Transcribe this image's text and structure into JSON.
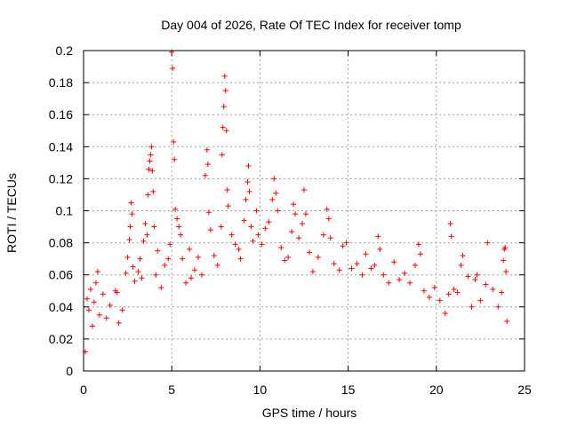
{
  "chart_data": {
    "type": "scatter",
    "title": "Day 004 of 2026, Rate Of TEC Index for receiver tomp",
    "xlabel": "GPS time / hours",
    "ylabel": "ROTI / TECUs",
    "xlim": [
      0,
      25
    ],
    "ylim": [
      0,
      0.2
    ],
    "x_ticks": [
      "0",
      "5",
      "10",
      "15",
      "20",
      "25"
    ],
    "y_ticks": [
      "0",
      "0.02",
      "0.04",
      "0.06",
      "0.08",
      "0.1",
      "0.12",
      "0.14",
      "0.16",
      "0.18",
      "0.2"
    ],
    "grid": true,
    "marker": "+",
    "color": "#ff0000",
    "series": [
      {
        "points": [
          [
            0.1,
            0.012
          ],
          [
            0.2,
            0.045
          ],
          [
            0.3,
            0.038
          ],
          [
            0.4,
            0.051
          ],
          [
            0.5,
            0.028
          ],
          [
            0.6,
            0.043
          ],
          [
            0.7,
            0.055
          ],
          [
            0.8,
            0.062
          ],
          [
            0.9,
            0.035
          ],
          [
            1.1,
            0.048
          ],
          [
            1.3,
            0.033
          ],
          [
            1.5,
            0.041
          ],
          [
            1.8,
            0.05
          ],
          [
            1.9,
            0.049
          ],
          [
            2.0,
            0.03
          ],
          [
            2.2,
            0.038
          ],
          [
            2.4,
            0.061
          ],
          [
            2.5,
            0.071
          ],
          [
            2.6,
            0.082
          ],
          [
            2.65,
            0.09
          ],
          [
            2.7,
            0.105
          ],
          [
            2.75,
            0.098
          ],
          [
            2.8,
            0.065
          ],
          [
            2.9,
            0.056
          ],
          [
            3.1,
            0.062
          ],
          [
            3.2,
            0.07
          ],
          [
            3.3,
            0.058
          ],
          [
            3.4,
            0.081
          ],
          [
            3.5,
            0.092
          ],
          [
            3.6,
            0.085
          ],
          [
            3.65,
            0.11
          ],
          [
            3.7,
            0.126
          ],
          [
            3.75,
            0.131
          ],
          [
            3.8,
            0.135
          ],
          [
            3.85,
            0.14
          ],
          [
            3.9,
            0.125
          ],
          [
            3.95,
            0.112
          ],
          [
            4.0,
            0.09
          ],
          [
            4.1,
            0.06
          ],
          [
            4.2,
            0.075
          ],
          [
            4.4,
            0.052
          ],
          [
            4.6,
            0.066
          ],
          [
            4.8,
            0.07
          ],
          [
            4.9,
            0.079
          ],
          [
            5.0,
            0.199
          ],
          [
            5.05,
            0.189
          ],
          [
            5.1,
            0.143
          ],
          [
            5.15,
            0.132
          ],
          [
            5.2,
            0.101
          ],
          [
            5.3,
            0.095
          ],
          [
            5.4,
            0.09
          ],
          [
            5.5,
            0.085
          ],
          [
            5.6,
            0.07
          ],
          [
            5.8,
            0.055
          ],
          [
            6.0,
            0.076
          ],
          [
            6.1,
            0.058
          ],
          [
            6.3,
            0.063
          ],
          [
            6.5,
            0.071
          ],
          [
            6.7,
            0.06
          ],
          [
            6.9,
            0.122
          ],
          [
            7.0,
            0.138
          ],
          [
            7.05,
            0.129
          ],
          [
            7.1,
            0.099
          ],
          [
            7.2,
            0.088
          ],
          [
            7.4,
            0.072
          ],
          [
            7.6,
            0.066
          ],
          [
            7.8,
            0.09
          ],
          [
            7.85,
            0.135
          ],
          [
            7.9,
            0.152
          ],
          [
            7.95,
            0.165
          ],
          [
            8.0,
            0.184
          ],
          [
            8.05,
            0.175
          ],
          [
            8.1,
            0.15
          ],
          [
            8.15,
            0.113
          ],
          [
            8.2,
            0.103
          ],
          [
            8.4,
            0.085
          ],
          [
            8.6,
            0.079
          ],
          [
            8.8,
            0.076
          ],
          [
            8.9,
            0.07
          ],
          [
            9.1,
            0.094
          ],
          [
            9.2,
            0.107
          ],
          [
            9.3,
            0.118
          ],
          [
            9.35,
            0.128
          ],
          [
            9.4,
            0.112
          ],
          [
            9.5,
            0.09
          ],
          [
            9.6,
            0.081
          ],
          [
            9.8,
            0.1
          ],
          [
            9.9,
            0.085
          ],
          [
            10.1,
            0.079
          ],
          [
            10.3,
            0.089
          ],
          [
            10.5,
            0.093
          ],
          [
            10.7,
            0.107
          ],
          [
            10.8,
            0.12
          ],
          [
            10.9,
            0.111
          ],
          [
            11.0,
            0.1
          ],
          [
            11.2,
            0.077
          ],
          [
            11.4,
            0.069
          ],
          [
            11.6,
            0.071
          ],
          [
            11.8,
            0.087
          ],
          [
            11.9,
            0.104
          ],
          [
            12.0,
            0.098
          ],
          [
            12.2,
            0.083
          ],
          [
            12.4,
            0.092
          ],
          [
            12.5,
            0.113
          ],
          [
            12.6,
            0.098
          ],
          [
            12.8,
            0.074
          ],
          [
            13.0,
            0.062
          ],
          [
            13.3,
            0.071
          ],
          [
            13.6,
            0.085
          ],
          [
            13.8,
            0.101
          ],
          [
            13.9,
            0.095
          ],
          [
            14.0,
            0.083
          ],
          [
            14.2,
            0.067
          ],
          [
            14.5,
            0.063
          ],
          [
            14.7,
            0.078
          ],
          [
            14.9,
            0.08
          ],
          [
            15.2,
            0.064
          ],
          [
            15.5,
            0.067
          ],
          [
            15.8,
            0.06
          ],
          [
            16.0,
            0.073
          ],
          [
            16.3,
            0.064
          ],
          [
            16.5,
            0.066
          ],
          [
            16.7,
            0.084
          ],
          [
            16.8,
            0.076
          ],
          [
            17.0,
            0.06
          ],
          [
            17.3,
            0.055
          ],
          [
            17.6,
            0.068
          ],
          [
            17.9,
            0.057
          ],
          [
            18.2,
            0.061
          ],
          [
            18.5,
            0.055
          ],
          [
            18.8,
            0.066
          ],
          [
            19.0,
            0.079
          ],
          [
            19.1,
            0.073
          ],
          [
            19.3,
            0.05
          ],
          [
            19.6,
            0.046
          ],
          [
            19.9,
            0.052
          ],
          [
            20.2,
            0.044
          ],
          [
            20.5,
            0.036
          ],
          [
            20.7,
            0.048
          ],
          [
            20.8,
            0.092
          ],
          [
            20.85,
            0.084
          ],
          [
            21.0,
            0.051
          ],
          [
            21.2,
            0.049
          ],
          [
            21.4,
            0.066
          ],
          [
            21.5,
            0.072
          ],
          [
            21.8,
            0.059
          ],
          [
            22.0,
            0.04
          ],
          [
            22.2,
            0.057
          ],
          [
            22.3,
            0.06
          ],
          [
            22.5,
            0.044
          ],
          [
            22.8,
            0.054
          ],
          [
            22.9,
            0.08
          ],
          [
            23.2,
            0.051
          ],
          [
            23.5,
            0.04
          ],
          [
            23.7,
            0.049
          ],
          [
            23.8,
            0.069
          ],
          [
            23.85,
            0.076
          ],
          [
            23.9,
            0.077
          ],
          [
            23.95,
            0.062
          ],
          [
            24.0,
            0.031
          ]
        ]
      }
    ]
  }
}
